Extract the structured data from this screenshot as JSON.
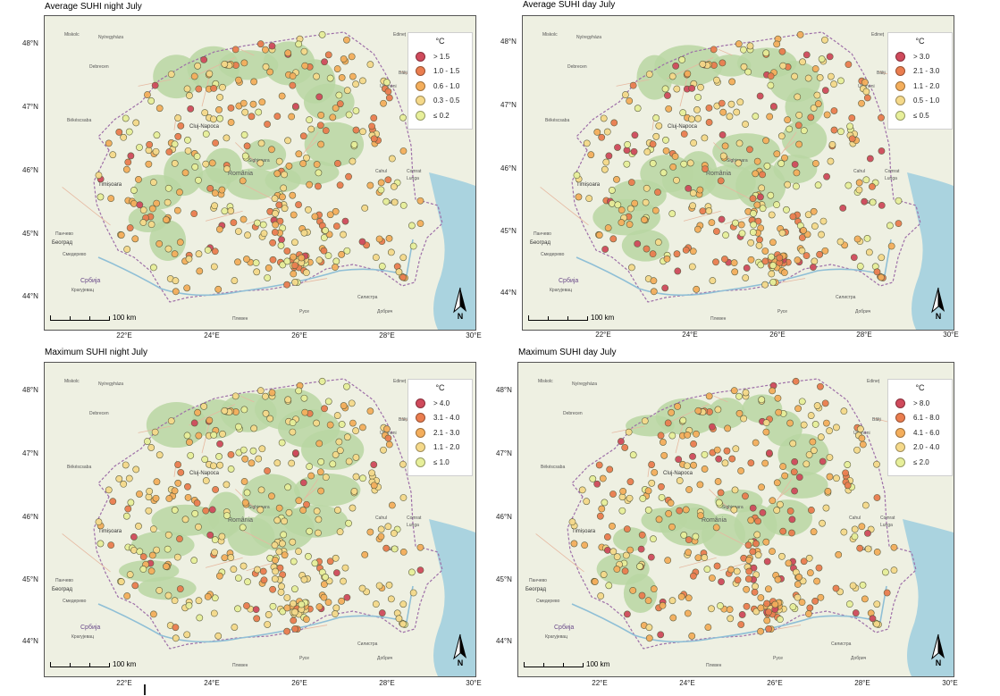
{
  "panels": [
    {
      "title": "Average SUHI night July",
      "legend": {
        "title": "°C",
        "items": [
          {
            "label": "> 1.5",
            "color": "#cf4a5c"
          },
          {
            "label": "1.0 - 1.5",
            "color": "#ea7d4f"
          },
          {
            "label": "0.6 - 1.0",
            "color": "#f4ae5c"
          },
          {
            "label": "0.3 - 0.5",
            "color": "#f5d98a"
          },
          {
            "label": "≤ 0.2",
            "color": "#e7ef9a"
          }
        ]
      }
    },
    {
      "title": "Average SUHI day July",
      "legend": {
        "title": "°C",
        "items": [
          {
            "label": "> 3.0",
            "color": "#cf4a5c"
          },
          {
            "label": "2.1 - 3.0",
            "color": "#ea7d4f"
          },
          {
            "label": "1.1 - 2.0",
            "color": "#f4ae5c"
          },
          {
            "label": "0.5 - 1.0",
            "color": "#f5d98a"
          },
          {
            "label": "≤ 0.5",
            "color": "#e7ef9a"
          }
        ]
      }
    },
    {
      "title": "Maximum SUHI night July",
      "legend": {
        "title": "°C",
        "items": [
          {
            "label": "> 4.0",
            "color": "#cf4a5c"
          },
          {
            "label": "3.1 - 4.0",
            "color": "#ea7d4f"
          },
          {
            "label": "2.1 - 3.0",
            "color": "#f4ae5c"
          },
          {
            "label": "1.1 - 2.0",
            "color": "#f5d98a"
          },
          {
            "label": "≤ 1.0",
            "color": "#e7ef9a"
          }
        ]
      }
    },
    {
      "title": "Maximum SUHI day July",
      "legend": {
        "title": "°C",
        "items": [
          {
            "label": "> 8.0",
            "color": "#cf4a5c"
          },
          {
            "label": "6.1 - 8.0",
            "color": "#ea7d4f"
          },
          {
            "label": "4.1 - 6.0",
            "color": "#f4ae5c"
          },
          {
            "label": "2.0 - 4.0",
            "color": "#f5d98a"
          },
          {
            "label": "≤ 2.0",
            "color": "#e7ef9a"
          }
        ]
      }
    }
  ],
  "axes": {
    "y_ticks": [
      "48°N",
      "47°N",
      "46°N",
      "45°N",
      "44°N"
    ],
    "x_ticks": [
      "22°E",
      "24°E",
      "26°E",
      "28°E",
      "30°E"
    ]
  },
  "scalebar_label": "100 km",
  "north_label": "N",
  "place_labels": {
    "romania": "România",
    "cluj": "Cluj-Napoca",
    "timisoara": "Timișoara",
    "galati": "Galați",
    "sighisoara": "Sighișoara",
    "debrecen": "Debrecen",
    "miskolc": "Miskolc",
    "beograd": "Београд",
    "srbija": "Србија",
    "bekescsaba": "Békéscsaba",
    "nyiregyhaza": "Nyíregyháza",
    "cahul": "Cahul",
    "comrat": "Comrat",
    "lunga": "Lunga",
    "edinet": "Edineț",
    "ungheni": "Ungheni",
    "balti": "Bălți",
    "kragujevac": "Крагујевац",
    "smederevo": "Смедерево",
    "pancevo": "Панчево",
    "pleven": "Плевен",
    "ruse": "Русе",
    "dobrich": "Добрич",
    "silistra": "Силистра"
  },
  "colors": {
    "map_bg": "#e8eedc",
    "forest": "#b9d6a2",
    "water": "#aad3df",
    "border": "#9e6fa8"
  }
}
